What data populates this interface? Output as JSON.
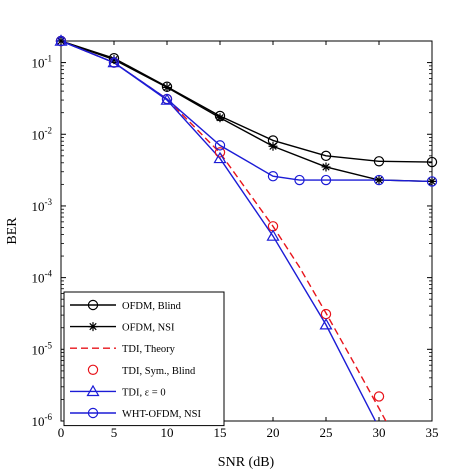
{
  "chart_data": {
    "type": "line",
    "xlabel": "SNR (dB)",
    "ylabel": "BER",
    "xlim": [
      0,
      35
    ],
    "ylim": [
      1e-06,
      0.2
    ],
    "yscale": "log",
    "grid": false,
    "legend_position": "bottom-left",
    "x_ticks": [
      0,
      5,
      10,
      15,
      20,
      25,
      30,
      35
    ],
    "x_tick_labels": [
      "0",
      "5",
      "10",
      "15",
      "20",
      "25",
      "30",
      "35"
    ],
    "y_ticks": [
      1e-06,
      1e-05,
      0.0001,
      0.001,
      0.01,
      0.1
    ],
    "y_tick_labels": [
      {
        "base": "10",
        "exp": "-6"
      },
      {
        "base": "10",
        "exp": "-5"
      },
      {
        "base": "10",
        "exp": "-4"
      },
      {
        "base": "10",
        "exp": "-3"
      },
      {
        "base": "10",
        "exp": "-2"
      },
      {
        "base": "10",
        "exp": "-1"
      }
    ],
    "series": [
      {
        "name": "OFDM, Blind",
        "color": "#000000",
        "line": "solid",
        "marker": "circle",
        "x": [
          0,
          5,
          10,
          15,
          20,
          25,
          30,
          35
        ],
        "y": [
          0.2,
          0.115,
          0.046,
          0.018,
          0.0082,
          0.005,
          0.0042,
          0.0041
        ]
      },
      {
        "name": "OFDM, NSI",
        "color": "#000000",
        "line": "solid",
        "marker": "asterisk",
        "x": [
          0,
          5,
          10,
          15,
          20,
          25,
          30,
          35
        ],
        "y": [
          0.2,
          0.11,
          0.045,
          0.017,
          0.0068,
          0.0035,
          0.0023,
          0.0022
        ]
      },
      {
        "name": "TDI, Theory",
        "color": "#e8141b",
        "line": "dashed",
        "marker": "none",
        "x": [
          0,
          5,
          10,
          15,
          20,
          22.5,
          25,
          27.5,
          30,
          31
        ],
        "y": [
          0.2,
          0.1,
          0.031,
          0.0055,
          0.00052,
          0.00014,
          3.2e-05,
          7e-06,
          1.5e-06,
          8e-07
        ]
      },
      {
        "name": "TDI, Sym., Blind",
        "color": "#e8141b",
        "line": "none",
        "marker": "circle",
        "x": [
          0,
          5,
          10,
          15,
          20,
          25,
          30
        ],
        "y": [
          0.2,
          0.1,
          0.031,
          0.0056,
          0.00052,
          3.1e-05,
          2.2e-06
        ]
      },
      {
        "name": "TDI, ε = 0",
        "color": "#1c1cd6",
        "line": "solid",
        "marker": "triangle",
        "x": [
          0,
          5,
          10,
          15,
          20,
          25,
          30
        ],
        "y": [
          0.2,
          0.1,
          0.03,
          0.0046,
          0.00038,
          2.2e-05,
          8e-07
        ]
      },
      {
        "name": "WHT-OFDM, NSI",
        "color": "#1c1cd6",
        "line": "solid",
        "marker": "circle",
        "x": [
          0,
          5,
          10,
          15,
          20,
          22.5,
          25,
          30,
          35
        ],
        "y": [
          0.2,
          0.1,
          0.031,
          0.007,
          0.0026,
          0.0023,
          0.0023,
          0.0023,
          0.0022
        ]
      }
    ]
  }
}
